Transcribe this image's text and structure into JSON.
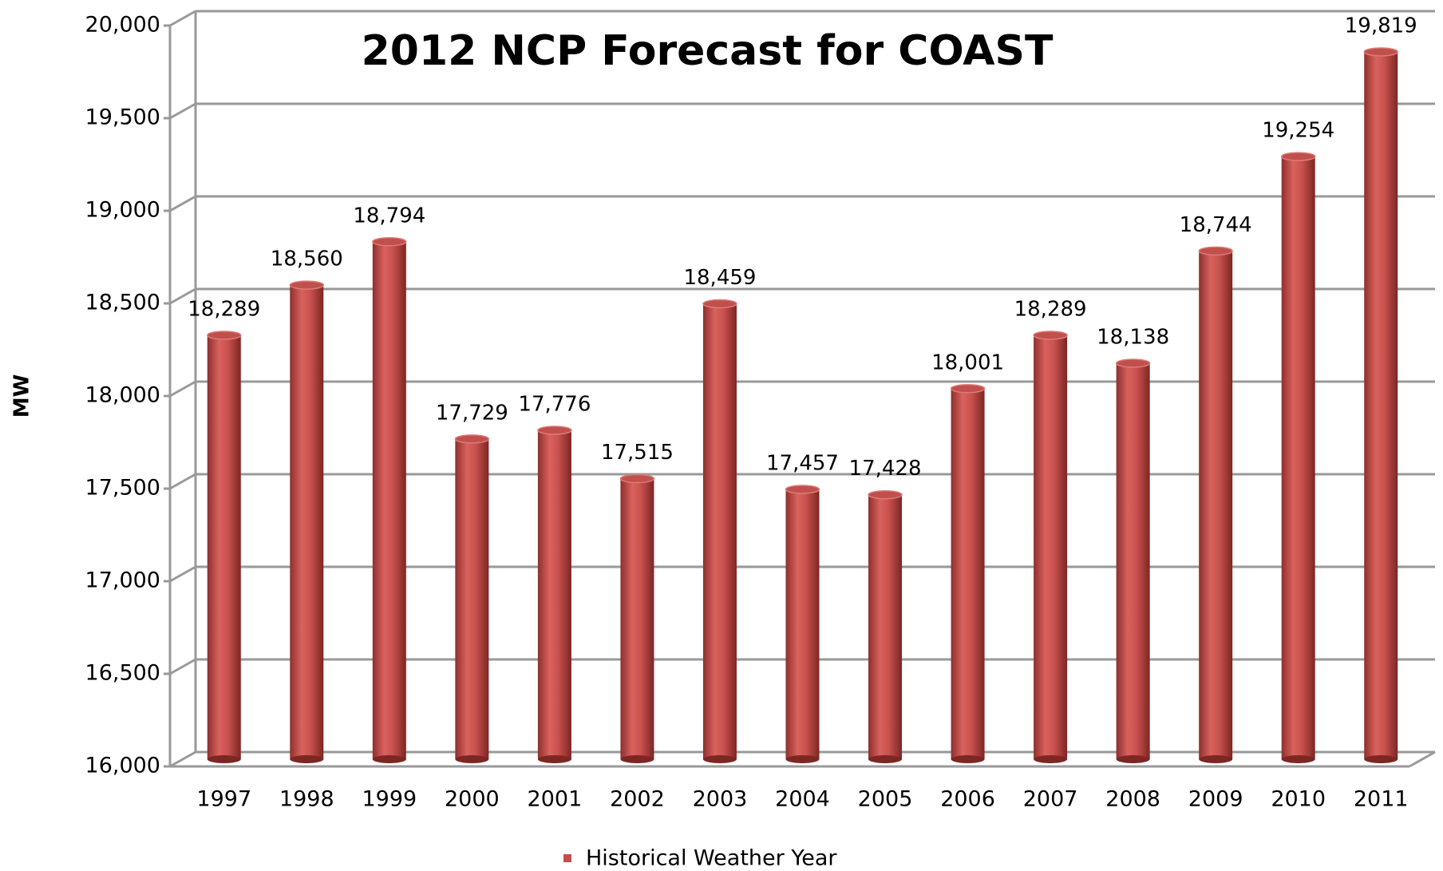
{
  "chart_data": {
    "type": "bar",
    "title": "2012 NCP Forecast for COAST",
    "y_label": "MW",
    "categories": [
      "1997",
      "1998",
      "1999",
      "2000",
      "2001",
      "2002",
      "2003",
      "2004",
      "2005",
      "2006",
      "2007",
      "2008",
      "2009",
      "2010",
      "2011"
    ],
    "series": [
      {
        "name": "Historical Weather Year",
        "color": "#c0504d",
        "values": [
          18289,
          18560,
          18794,
          17729,
          17776,
          17515,
          18459,
          17457,
          17428,
          18001,
          18289,
          18138,
          18744,
          19254,
          19819
        ],
        "value_labels": [
          "18,289",
          "18,560",
          "18,794",
          "17,729",
          "17,776",
          "17,515",
          "18,459",
          "17,457",
          "17,428",
          "18,001",
          "18,289",
          "18,138",
          "18,744",
          "19,254",
          "19,819"
        ]
      }
    ],
    "ylim": [
      16000,
      20000
    ],
    "yticks": [
      {
        "value": 16000,
        "label": "16,000"
      },
      {
        "value": 16500,
        "label": "16,500"
      },
      {
        "value": 17000,
        "label": "17,000"
      },
      {
        "value": 17500,
        "label": "17,500"
      },
      {
        "value": 18000,
        "label": "18,000"
      },
      {
        "value": 18500,
        "label": "18,500"
      },
      {
        "value": 19000,
        "label": "19,000"
      },
      {
        "value": 19500,
        "label": "19,500"
      },
      {
        "value": 20000,
        "label": "20,000"
      }
    ],
    "grid": true,
    "legend": "bottom"
  }
}
